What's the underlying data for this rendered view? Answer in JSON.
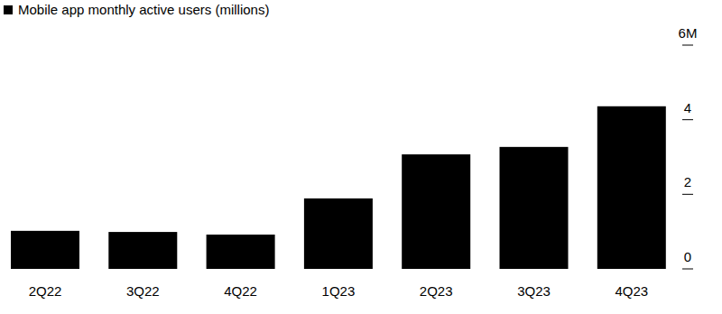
{
  "chart_data": {
    "type": "bar",
    "categories": [
      "2Q22",
      "3Q22",
      "4Q22",
      "1Q23",
      "2Q23",
      "3Q23",
      "4Q23"
    ],
    "series": [
      {
        "name": "Mobile app monthly active users (millions)",
        "color": "#000000",
        "values": [
          1.02,
          0.99,
          0.92,
          1.89,
          3.07,
          3.27,
          4.36
        ]
      }
    ],
    "ylim": [
      0,
      6
    ],
    "yticks": [
      0,
      2,
      4,
      {
        "value": 6,
        "label": "6M"
      }
    ],
    "legend": "top-left",
    "grid": false
  }
}
